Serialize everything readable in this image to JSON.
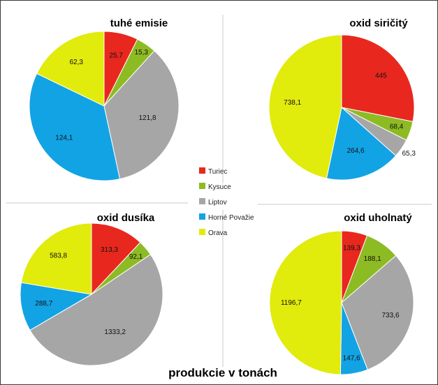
{
  "colors": {
    "Turiec": "#e8281e",
    "Kysuce": "#8dbb23",
    "Liptov": "#a6a6a6",
    "Horné Považie": "#12a3e4",
    "Orava": "#e1eb0c"
  },
  "legend": [
    "Turiec",
    "Kysuce",
    "Liptov",
    "Horné Považie",
    "Orava"
  ],
  "footer_title": "produkcie v tonách",
  "chart_data": [
    {
      "type": "pie",
      "title": "tuhé emisie",
      "labels": [
        "Turiec",
        "Kysuce",
        "Liptov",
        "Horné Považie",
        "Orava"
      ],
      "values": [
        25.7,
        15.3,
        121.8,
        124.1,
        62.3
      ],
      "value_labels": [
        "25,7",
        "15,3",
        "121,8",
        "124,1",
        "62,3"
      ]
    },
    {
      "type": "pie",
      "title": "oxid siričitý",
      "labels": [
        "Turiec",
        "Kysuce",
        "Liptov",
        "Horné Považie",
        "Orava"
      ],
      "values": [
        445,
        68.4,
        65.3,
        264.6,
        738.1
      ],
      "value_labels": [
        "445",
        "68,4",
        "65,3",
        "264,6",
        "738,1"
      ]
    },
    {
      "type": "pie",
      "title": "oxid dusíka",
      "labels": [
        "Turiec",
        "Kysuce",
        "Liptov",
        "Horné Považie",
        "Orava"
      ],
      "values": [
        313.3,
        92.1,
        1333.2,
        288.7,
        583.8
      ],
      "value_labels": [
        "313,3",
        "92,1",
        "1333,2",
        "288,7",
        "583,8"
      ]
    },
    {
      "type": "pie",
      "title": "oxid uholnatý",
      "labels": [
        "Turiec",
        "Kysuce",
        "Liptov",
        "Horné Považie",
        "Orava"
      ],
      "values": [
        139.3,
        188.1,
        733.6,
        147.6,
        1196.7
      ],
      "value_labels": [
        "139,3",
        "188,1",
        "733,6",
        "147,6",
        "1196,7"
      ]
    }
  ]
}
